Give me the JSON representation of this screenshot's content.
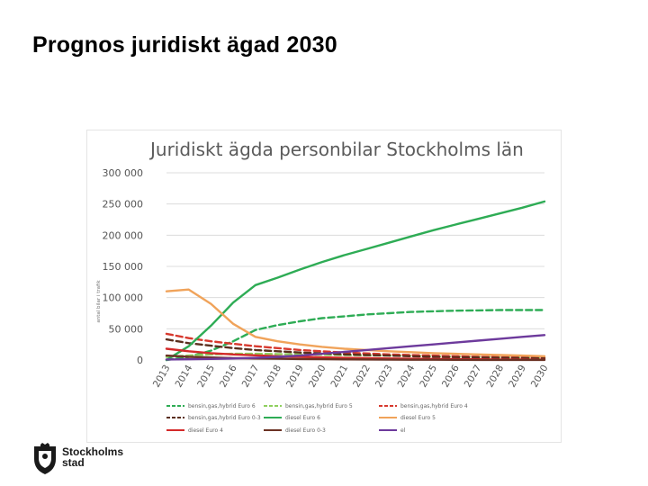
{
  "slide": {
    "title": "Prognos juridiskt ägad 2030"
  },
  "logo": {
    "line1": "Stockholms",
    "line2": "stad",
    "icon": "stockholm-crest-icon"
  },
  "chart_data": {
    "type": "line",
    "title": "Juridiskt ägda personbilar Stockholms län",
    "ylabel": "antal bilar i trafik",
    "xlabel": "",
    "ylim": [
      0,
      300000
    ],
    "yticks": [
      0,
      50000,
      100000,
      150000,
      200000,
      250000,
      300000
    ],
    "ytick_labels": [
      "0",
      "50 000",
      "100 000",
      "150 000",
      "200 000",
      "250 000",
      "300 000"
    ],
    "x": [
      "2013",
      "2014",
      "2015",
      "2016",
      "2017",
      "2018",
      "2019",
      "2020",
      "2021",
      "2022",
      "2023",
      "2024",
      "2025",
      "2026",
      "2027",
      "2028",
      "2029",
      "2030"
    ],
    "grid": true,
    "legend_position": "bottom",
    "series": [
      {
        "name": "bensin,gas,hybrid Euro 6",
        "color": "#2eac55",
        "dash": "dashed",
        "values": [
          0,
          5000,
          15000,
          30000,
          48000,
          56000,
          62000,
          67000,
          70000,
          73000,
          75000,
          77000,
          78000,
          79000,
          79500,
          80000,
          80000,
          80000
        ]
      },
      {
        "name": "bensin,gas,hybrid Euro 5",
        "color": "#8fcf5e",
        "dash": "dashed",
        "values": [
          5000,
          7000,
          9000,
          10000,
          10000,
          9500,
          9000,
          8500,
          8000,
          7500,
          7000,
          6500,
          6000,
          5500,
          5000,
          4500,
          4000,
          3500
        ]
      },
      {
        "name": "bensin,gas,hybrid Euro 4",
        "color": "#d7392e",
        "dash": "dashed",
        "values": [
          42000,
          35000,
          30000,
          26000,
          22000,
          19000,
          16000,
          14000,
          12000,
          10500,
          9000,
          8000,
          7000,
          6000,
          5000,
          4500,
          4000,
          3500
        ]
      },
      {
        "name": "bensin,gas,hybrid Euro 0-3",
        "color": "#5a2f1e",
        "dash": "dashed",
        "values": [
          33000,
          27000,
          23000,
          19000,
          16000,
          14000,
          12000,
          10500,
          9000,
          8000,
          7000,
          6000,
          5000,
          4500,
          4000,
          3500,
          3000,
          2500
        ]
      },
      {
        "name": "diesel Euro 6",
        "color": "#2eac55",
        "dash": "solid",
        "values": [
          0,
          22000,
          55000,
          92000,
          120000,
          132000,
          145000,
          157000,
          168000,
          178000,
          188000,
          198000,
          208000,
          217000,
          226000,
          235000,
          244000,
          254000
        ]
      },
      {
        "name": "diesel Euro 5",
        "color": "#f0a35a",
        "dash": "solid",
        "values": [
          110000,
          113000,
          90000,
          58000,
          37000,
          30000,
          25000,
          21000,
          18000,
          16000,
          14000,
          12500,
          11000,
          10000,
          9000,
          8000,
          7000,
          6000
        ]
      },
      {
        "name": "diesel Euro 4",
        "color": "#d42a2a",
        "dash": "solid",
        "values": [
          18000,
          14000,
          11000,
          9000,
          7500,
          6000,
          5000,
          4200,
          3500,
          3000,
          2500,
          2000,
          1700,
          1400,
          1100,
          900,
          700,
          500
        ]
      },
      {
        "name": "diesel Euro 0-3",
        "color": "#6b3224",
        "dash": "solid",
        "values": [
          7000,
          5000,
          4000,
          3000,
          2500,
          2000,
          1600,
          1300,
          1000,
          800,
          600,
          500,
          400,
          300,
          200,
          150,
          100,
          80
        ]
      },
      {
        "name": "el",
        "color": "#6d3a9c",
        "dash": "solid",
        "values": [
          800,
          1200,
          1800,
          2500,
          3500,
          5000,
          7000,
          10000,
          13000,
          16000,
          19000,
          22000,
          25000,
          28000,
          31000,
          34000,
          37000,
          40000
        ]
      }
    ]
  }
}
